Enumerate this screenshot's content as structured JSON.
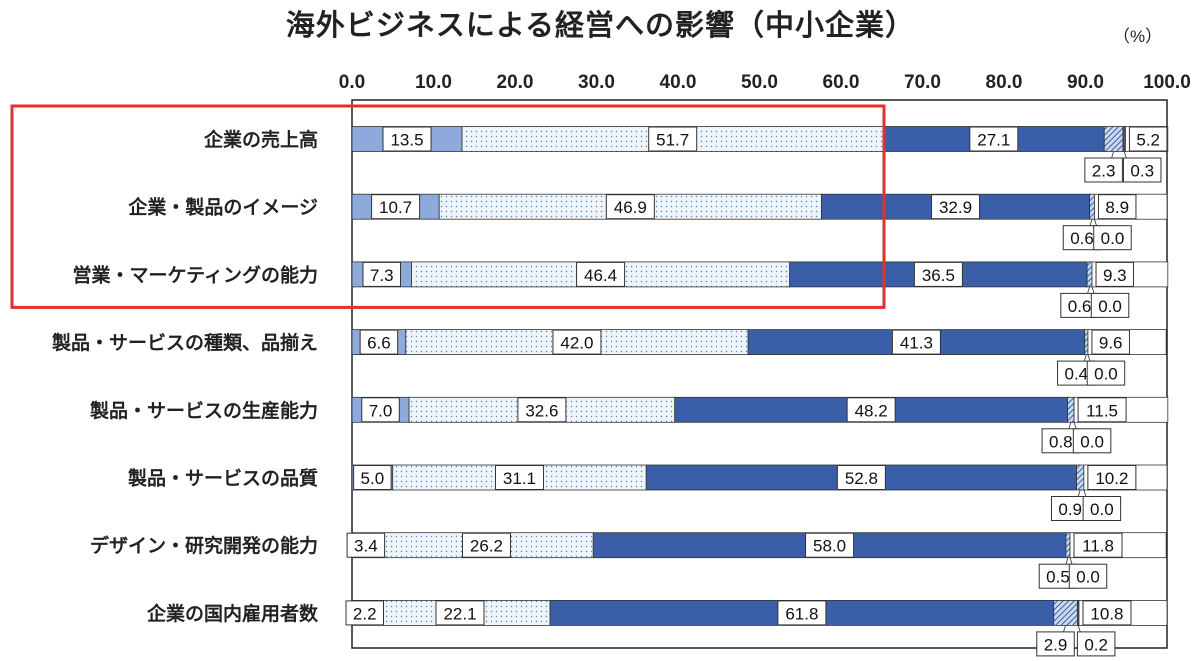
{
  "chart_data": {
    "type": "bar",
    "stacked": true,
    "orientation": "horizontal",
    "title": "海外ビジネスによる経営への影響（中小企業）",
    "unit": "（%）",
    "xlim": [
      0,
      100
    ],
    "ticks": [
      "0.0",
      "10.0",
      "20.0",
      "30.0",
      "40.0",
      "50.0",
      "60.0",
      "70.0",
      "80.0",
      "90.0",
      "100.0"
    ],
    "categories": [
      "企業の売上高",
      "企業・製品のイメージ",
      "営業・マーケティングの能力",
      "製品・サービスの種類、品揃え",
      "製品・サービスの生産能力",
      "製品・サービスの品質",
      "デザイン・研究開発の能力",
      "企業の国内雇用者数"
    ],
    "series": [
      {
        "values": [
          13.5,
          10.7,
          7.3,
          6.6,
          7.0,
          5.0,
          3.4,
          2.2
        ],
        "color": "#8ea9db",
        "pattern": "solid"
      },
      {
        "values": [
          51.7,
          46.9,
          46.4,
          42.0,
          32.6,
          31.1,
          26.2,
          22.1
        ],
        "color": "#eef5fa",
        "pattern": "dots"
      },
      {
        "values": [
          27.1,
          32.9,
          36.5,
          41.3,
          48.2,
          52.8,
          58.0,
          61.8
        ],
        "color": "#3a5fa8",
        "pattern": "solid"
      },
      {
        "values": [
          2.3,
          0.6,
          0.6,
          0.4,
          0.8,
          0.9,
          0.5,
          2.9
        ],
        "color": "#8fb3dc",
        "pattern": "hatch"
      },
      {
        "values": [
          0.3,
          0.0,
          0.0,
          0.0,
          0.0,
          0.0,
          0.0,
          0.2
        ],
        "color": "#555555",
        "pattern": "solid"
      },
      {
        "values": [
          5.2,
          8.9,
          9.3,
          9.6,
          11.5,
          10.2,
          11.8,
          10.8
        ],
        "color": "#ffffff",
        "pattern": "solid"
      }
    ],
    "value_labels": [
      [
        "13.5",
        "51.7",
        "27.1",
        "2.3",
        "0.3",
        "5.2"
      ],
      [
        "10.7",
        "46.9",
        "32.9",
        "0.6",
        "0.0",
        "8.9"
      ],
      [
        "7.3",
        "46.4",
        "36.5",
        "0.6",
        "0.0",
        "9.3"
      ],
      [
        "6.6",
        "42.0",
        "41.3",
        "0.4",
        "0.0",
        "9.6"
      ],
      [
        "7.0",
        "32.6",
        "48.2",
        "0.8",
        "0.0",
        "11.5"
      ],
      [
        "5.0",
        "31.1",
        "52.8",
        "0.9",
        "0.0",
        "10.2"
      ],
      [
        "3.4",
        "26.2",
        "58.0",
        "0.5",
        "0.0",
        "11.8"
      ],
      [
        "2.2",
        "22.1",
        "61.8",
        "2.9",
        "0.2",
        "10.8"
      ]
    ],
    "grid": false,
    "legend": "none",
    "highlight": {
      "categories": [
        0,
        1,
        2
      ],
      "color": "#e0322d"
    }
  }
}
